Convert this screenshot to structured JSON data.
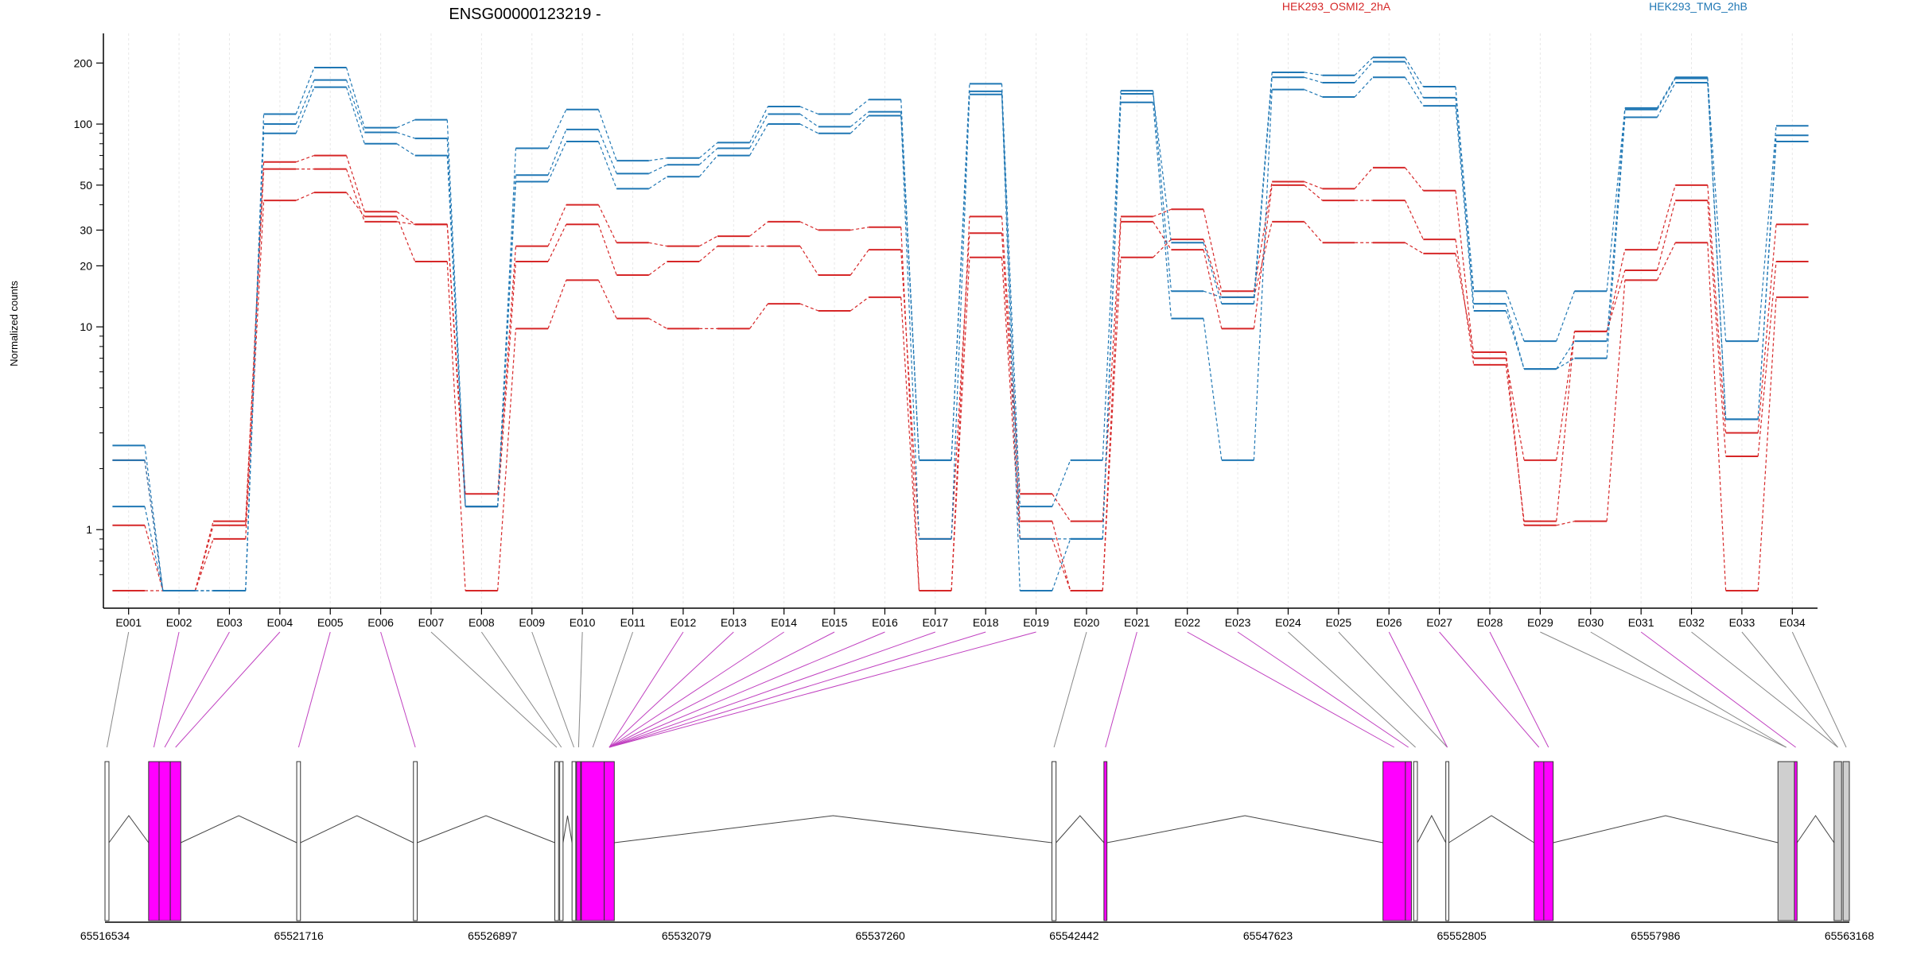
{
  "chart_data": {
    "type": "line",
    "title": "ENSG00000123219 -",
    "ylabel": "Normalized counts",
    "xlabel": "",
    "y_scale": "log",
    "ylim": [
      0.5,
      280
    ],
    "y_ticks": [
      1,
      10,
      20,
      30,
      50,
      100,
      200
    ],
    "grid": "vertical",
    "legend": [
      {
        "label": "HEK293_OSMI2_2hA",
        "color": "#d62728"
      },
      {
        "label": "HEK293_TMG_2hB",
        "color": "#1f77b4"
      }
    ],
    "categories": [
      "E001",
      "E002",
      "E003",
      "E004",
      "E005",
      "E006",
      "E007",
      "E008",
      "E009",
      "E010",
      "E011",
      "E012",
      "E013",
      "E014",
      "E015",
      "E016",
      "E017",
      "E018",
      "E019",
      "E020",
      "E021",
      "E022",
      "E023",
      "E024",
      "E025",
      "E026",
      "E027",
      "E028",
      "E029",
      "E030",
      "E031",
      "E032",
      "E033",
      "E034"
    ],
    "series": [
      {
        "group": "HEK293_OSMI2_2hA",
        "color": "#d62728",
        "values": [
          2.2,
          0.5,
          1.1,
          65,
          70,
          37,
          32,
          1.5,
          25,
          40,
          26,
          25,
          28,
          33,
          30,
          31,
          0.5,
          35,
          1.5,
          1.1,
          35,
          38,
          15,
          52,
          48,
          61,
          47,
          7,
          2.2,
          9.5,
          24,
          50,
          3,
          32
        ]
      },
      {
        "group": "HEK293_OSMI2_2hA",
        "color": "#d62728",
        "values": [
          1.05,
          0.5,
          1.05,
          60,
          60,
          33,
          32,
          1.3,
          21,
          32,
          18,
          21,
          25,
          25,
          18,
          24,
          0.9,
          29,
          1.1,
          0.5,
          33,
          24,
          9.8,
          50,
          42,
          42,
          27,
          6.5,
          1.1,
          9.5,
          19,
          42,
          2.3,
          21
        ]
      },
      {
        "group": "HEK293_OSMI2_2hA",
        "color": "#d62728",
        "values": [
          0.5,
          0.5,
          0.9,
          42,
          46,
          35,
          21,
          0.5,
          9.8,
          17,
          11,
          9.8,
          9.8,
          13,
          12,
          14,
          0.5,
          22,
          0.9,
          0.5,
          22,
          27,
          14,
          33,
          26,
          26,
          23,
          7.5,
          1.05,
          1.1,
          17,
          26,
          0.5,
          14
        ]
      },
      {
        "group": "HEK293_TMG_2hB",
        "color": "#1f77b4",
        "values": [
          2.6,
          0.5,
          0.5,
          112,
          190,
          96,
          105,
          1.3,
          76,
          118,
          66,
          68,
          81,
          122,
          112,
          132,
          2.2,
          158,
          1.3,
          2.2,
          146,
          15,
          14,
          180,
          174,
          213,
          153,
          15,
          8.5,
          15,
          120,
          170,
          8.5,
          98
        ]
      },
      {
        "group": "HEK293_TMG_2hB",
        "color": "#1f77b4",
        "values": [
          2.2,
          0.5,
          0.5,
          100,
          165,
          91,
          85,
          1.3,
          56,
          94,
          57,
          63,
          76,
          112,
          97,
          115,
          2.2,
          145,
          0.9,
          0.9,
          141,
          26,
          13,
          170,
          160,
          203,
          135,
          13,
          6.2,
          8.5,
          118,
          168,
          3.5,
          88
        ]
      },
      {
        "group": "HEK293_TMG_2hB",
        "color": "#1f77b4",
        "values": [
          1.3,
          0.5,
          0.5,
          90,
          152,
          80,
          70,
          1.3,
          52,
          82,
          48,
          55,
          70,
          100,
          90,
          110,
          0.9,
          140,
          0.5,
          0.9,
          128,
          11,
          2.2,
          148,
          136,
          170,
          123,
          12,
          6.2,
          7,
          108,
          160,
          3.5,
          82
        ]
      }
    ]
  },
  "gene_model": {
    "start_label": "65516534",
    "end_label": "65563168",
    "axis_ticks": [
      "65516534",
      "65521716",
      "65526897",
      "65532079",
      "65537260",
      "65542442",
      "65547623",
      "65552805",
      "65557986",
      "65563168"
    ],
    "colors": {
      "highlight": "#ff00ff",
      "highlight_line": "#c040c0",
      "plain_line": "#888888",
      "grey_exon": "#cfcfcf"
    }
  }
}
